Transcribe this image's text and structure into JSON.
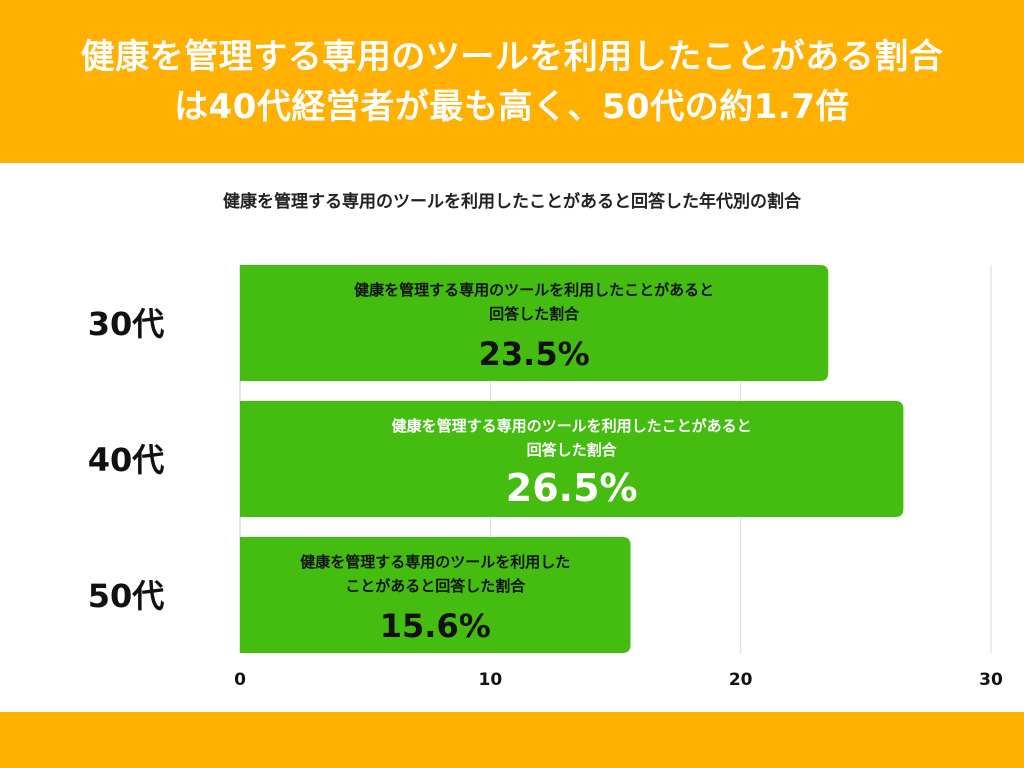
{
  "header": {
    "title_line1": "健康を管理する専用のツールを利用したことがある割合",
    "title_line2": "は40代経営者が最も高く、50代の約1.7倍"
  },
  "colors": {
    "banner": "#FFB000",
    "bar": "#44BC10",
    "grid": "#D9D9D9"
  },
  "chart_data": {
    "type": "bar",
    "orientation": "horizontal",
    "title": "健康を管理する専用のツールを利用したことがあると回答した年代別の割合",
    "categories": [
      "30代",
      "40代",
      "50代"
    ],
    "values": [
      23.5,
      26.5,
      15.6
    ],
    "value_labels": [
      "23.5%",
      "26.5%",
      "15.6%"
    ],
    "bar_captions": [
      [
        "健康を管理する専用のツールを利用したことがあると",
        "回答した割合"
      ],
      [
        "健康を管理する専用のツールを利用したことがあると",
        "回答した割合"
      ],
      [
        "健康を管理する専用のツールを利用した",
        "ことがあると回答した割合"
      ]
    ],
    "xlim": [
      0,
      30
    ],
    "xticks": [
      0,
      10,
      20,
      30
    ],
    "xtick_labels": [
      "0",
      "10",
      "20",
      "30"
    ],
    "grid": true
  }
}
